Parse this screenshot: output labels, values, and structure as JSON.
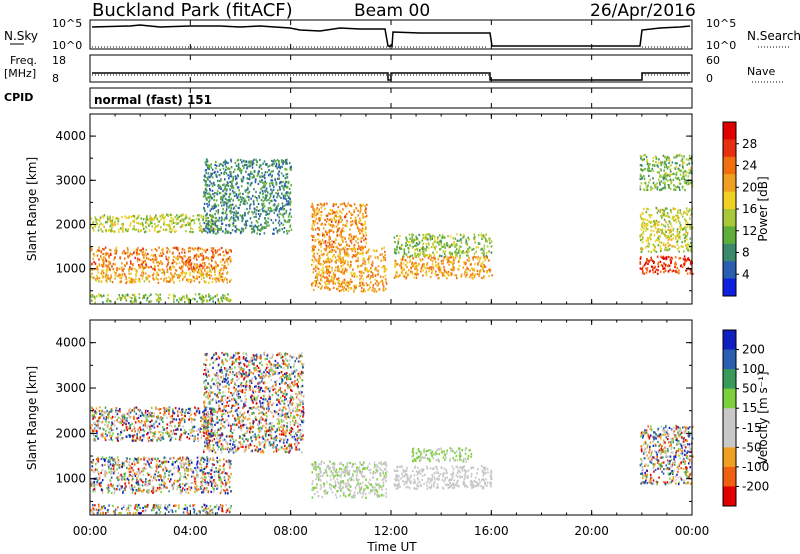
{
  "header": {
    "station": "Buckland Park (fitACF)",
    "beam": "Beam 00",
    "date": "26/Apr/2016"
  },
  "top_panels": {
    "nsky_label": "N.Sky",
    "nsky_ticks": [
      "10^5",
      "10^0"
    ],
    "nsearch_label": "N.Search",
    "nsearch_ticks": [
      "10^5",
      "10^0"
    ],
    "freq_label_1": "Freq.",
    "freq_label_2": "[MHz]",
    "freq_ticks": [
      "18",
      "8"
    ],
    "nave_label": "Nave",
    "nave_ticks": [
      "60",
      "0"
    ],
    "cpid_label": "CPID",
    "cpid_text": "normal (fast) 151"
  },
  "panels": {
    "power": {
      "ylabel": "Slant Range [km]",
      "yticks": [
        "4000",
        "3000",
        "2000",
        "1000"
      ],
      "colorbar_label": "Power [dB]",
      "colorbar_ticks": [
        "28",
        "24",
        "20",
        "16",
        "12",
        "8",
        "4"
      ]
    },
    "velocity": {
      "ylabel": "Slant Range [km]",
      "yticks": [
        "4000",
        "3000",
        "2000",
        "1000"
      ],
      "colorbar_label": "Velocity [m s⁻¹]",
      "colorbar_ticks": [
        "200",
        "100",
        "50",
        "15",
        "-15",
        "-50",
        "-100",
        "-200"
      ]
    }
  },
  "x_axis": {
    "xlabel": "Time UT",
    "ticks": [
      "00:00",
      "04:00",
      "08:00",
      "12:00",
      "16:00",
      "20:00",
      "00:00"
    ]
  },
  "chart_data": [
    {
      "type": "heatmap",
      "name": "power",
      "xlabel": "Time UT",
      "ylabel": "Slant Range [km]",
      "colorbar_label": "Power [dB]",
      "xlim_hours": [
        0,
        24
      ],
      "ylim_km": [
        200,
        4500
      ],
      "clim_db": [
        0,
        32
      ],
      "colors": [
        "#1020e0",
        "#2a5fb0",
        "#3a8a6a",
        "#5fae3a",
        "#a8c838",
        "#f0d020",
        "#f0a020",
        "#f07010",
        "#e83010",
        "#e00000"
      ],
      "data_gaps_hours": [
        [
          16.0,
          21.9
        ]
      ],
      "regions": [
        {
          "t": [
            0.0,
            5.6
          ],
          "r": [
            250,
            450
          ],
          "db": 13
        },
        {
          "t": [
            0.0,
            5.6
          ],
          "r": [
            700,
            1000
          ],
          "db": 20
        },
        {
          "t": [
            0.0,
            5.6
          ],
          "r": [
            1000,
            1500
          ],
          "db": 23
        },
        {
          "t": [
            0.0,
            5.0
          ],
          "r": [
            1850,
            2250
          ],
          "db": 15
        },
        {
          "t": [
            4.5,
            8.0
          ],
          "r": [
            1800,
            3500
          ],
          "db": 8
        },
        {
          "t": [
            8.8,
            11.8
          ],
          "r": [
            500,
            1500
          ],
          "db": 21
        },
        {
          "t": [
            8.8,
            11.0
          ],
          "r": [
            1500,
            2500
          ],
          "db": 22
        },
        {
          "t": [
            12.1,
            16.0
          ],
          "r": [
            800,
            1300
          ],
          "db": 21
        },
        {
          "t": [
            12.1,
            16.0
          ],
          "r": [
            1300,
            1800
          ],
          "db": 13
        },
        {
          "t": [
            21.9,
            24.0
          ],
          "r": [
            900,
            1300
          ],
          "db": 27
        },
        {
          "t": [
            21.9,
            24.0
          ],
          "r": [
            1400,
            2400
          ],
          "db": 16
        },
        {
          "t": [
            21.9,
            24.0
          ],
          "r": [
            2800,
            3600
          ],
          "db": 12
        }
      ]
    },
    {
      "type": "heatmap",
      "name": "velocity",
      "xlabel": "Time UT",
      "ylabel": "Slant Range [km]",
      "colorbar_label": "Velocity [m s⁻¹]",
      "xlim_hours": [
        0,
        24
      ],
      "ylim_km": [
        200,
        4500
      ],
      "clim_ms": [
        -250,
        250
      ],
      "colors": [
        "#e00000",
        "#f06010",
        "#f0a020",
        "#c8c8c8",
        "#c8c8c8",
        "#7cd03a",
        "#3a9a5a",
        "#2a5fb0",
        "#1020c0"
      ],
      "data_gaps_hours": [
        [
          16.0,
          21.9
        ]
      ],
      "regions": [
        {
          "t": [
            0.0,
            5.6
          ],
          "r": [
            250,
            450
          ],
          "v": "mixed"
        },
        {
          "t": [
            0.0,
            5.6
          ],
          "r": [
            700,
            1500
          ],
          "v": "mixed"
        },
        {
          "t": [
            0.0,
            5.0
          ],
          "r": [
            1850,
            2600
          ],
          "v": "mixed"
        },
        {
          "t": [
            4.5,
            8.5
          ],
          "r": [
            1600,
            3800
          ],
          "v": "mixed"
        },
        {
          "t": [
            8.8,
            11.8
          ],
          "r": [
            600,
            1400
          ],
          "v": 20
        },
        {
          "t": [
            12.1,
            16.0
          ],
          "r": [
            800,
            1300
          ],
          "v": 0
        },
        {
          "t": [
            12.8,
            15.2
          ],
          "r": [
            1400,
            1700
          ],
          "v": 30
        },
        {
          "t": [
            21.9,
            24.0
          ],
          "r": [
            900,
            2200
          ],
          "v": "mixed"
        }
      ]
    }
  ]
}
